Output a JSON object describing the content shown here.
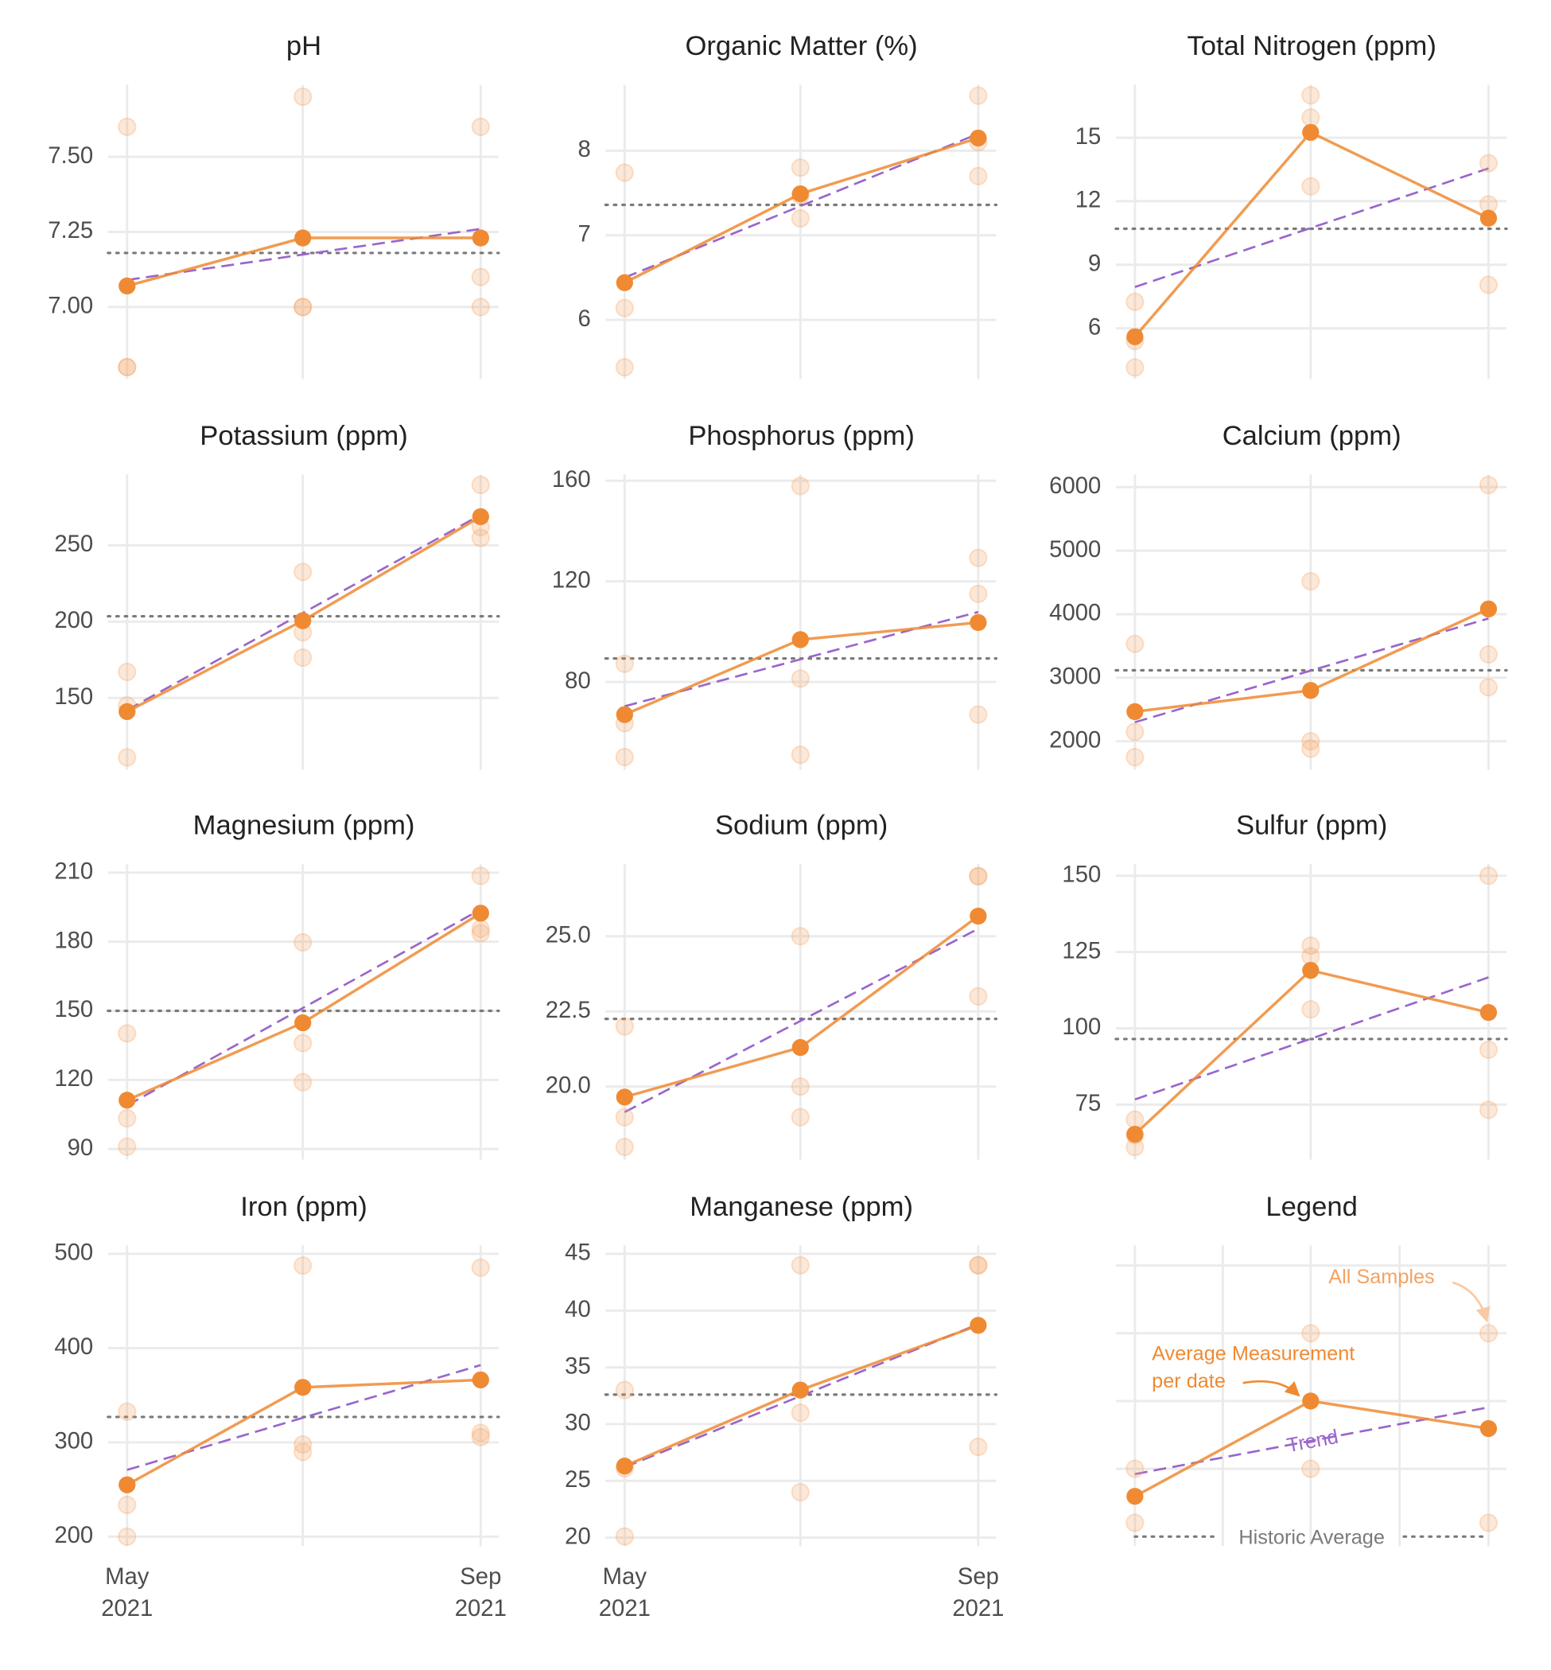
{
  "chart_data": [
    {
      "type": "line",
      "title": "pH",
      "categories": [
        null,
        null,
        null
      ],
      "samples": [
        [
          7.6,
          6.8,
          6.8
        ],
        [
          7.7,
          7.0,
          7.0
        ],
        [
          7.6,
          7.1,
          7.0
        ]
      ],
      "average": [
        7.07,
        7.23,
        7.23
      ],
      "trend": [
        7.09,
        7.26
      ],
      "historic_average": 7.18,
      "ylim": [
        6.76,
        7.74
      ],
      "yticks": [
        {
          "value": 7,
          "label": "7.00"
        },
        {
          "value": 7.25,
          "label": "7.25"
        },
        {
          "value": 7.5,
          "label": "7.50"
        }
      ]
    },
    {
      "type": "line",
      "title": "Organic Matter (%)",
      "categories": [
        null,
        null,
        null
      ],
      "samples": [
        [
          7.74,
          6.14,
          5.44
        ],
        [
          7.8,
          7.2,
          7.47
        ],
        [
          8.65,
          7.7,
          8.1
        ]
      ],
      "average": [
        6.44,
        7.49,
        8.15
      ],
      "trend": [
        6.5,
        8.2
      ],
      "historic_average": 7.36,
      "ylim": [
        5.3,
        8.78
      ],
      "yticks": [
        6,
        7,
        8
      ]
    },
    {
      "type": "line",
      "title": "Total Nitrogen (ppm)",
      "categories": [
        null,
        null,
        null
      ],
      "samples": [
        [
          7.25,
          5.4,
          4.15
        ],
        [
          17,
          15.95,
          12.7
        ],
        [
          13.8,
          11.85,
          8.05
        ]
      ],
      "average": [
        5.6,
        15.25,
        11.2
      ],
      "trend": [
        7.95,
        13.55
      ],
      "historic_average": 10.7,
      "ylim": [
        3.6,
        17.5
      ],
      "yticks": [
        6,
        9,
        12,
        15
      ]
    },
    {
      "type": "line",
      "title": "Potassium (ppm)",
      "categories": [
        null,
        null,
        null
      ],
      "samples": [
        [
          167,
          111,
          145
        ],
        [
          232.6,
          193,
          176.4
        ],
        [
          289.6,
          254.9,
          262
        ]
      ],
      "average": [
        141,
        200.6,
        268.8
      ],
      "trend": [
        142,
        270
      ],
      "historic_average": 203.5,
      "ylim": [
        102.8,
        296.5
      ],
      "yticks": [
        150,
        200,
        250
      ]
    },
    {
      "type": "line",
      "title": "Phosphorus (ppm)",
      "categories": [
        null,
        null,
        null
      ],
      "samples": [
        [
          87.2,
          63.6,
          50.1
        ],
        [
          157.9,
          81.3,
          51
        ],
        [
          129.3,
          115,
          67
        ]
      ],
      "average": [
        67,
        96.8,
        103.6
      ],
      "trend": [
        70.3,
        107.8
      ],
      "historic_average": 89.3,
      "ylim": [
        45,
        162.5
      ],
      "yticks": [
        80,
        120,
        160
      ]
    },
    {
      "type": "line",
      "title": "Calcium (ppm)",
      "categories": [
        null,
        null,
        null
      ],
      "samples": [
        [
          3533,
          2150,
          1750
        ],
        [
          4517,
          2000,
          1883
        ],
        [
          6033,
          3367,
          2850
        ]
      ],
      "average": [
        2467,
        2800,
        4083
      ],
      "trend": [
        2300,
        3933
      ],
      "historic_average": 3117,
      "ylim": [
        1550,
        6200
      ],
      "yticks": [
        2000,
        3000,
        4000,
        5000,
        6000
      ]
    },
    {
      "type": "line",
      "title": "Magnesium (ppm)",
      "categories": [
        null,
        null,
        null
      ],
      "samples": [
        [
          140.2,
          103.3,
          91
        ],
        [
          179.7,
          136,
          119
        ],
        [
          208.6,
          185.6,
          183.7
        ]
      ],
      "average": [
        111.2,
        144.8,
        192.4
      ],
      "trend": [
        108.9,
        194
      ],
      "historic_average": 150,
      "ylim": [
        85.4,
        213.7
      ],
      "yticks": [
        90,
        120,
        150,
        180,
        210
      ]
    },
    {
      "type": "line",
      "title": "Sodium (ppm)",
      "categories": [
        null,
        null,
        null
      ],
      "samples": [
        [
          22.0,
          18.98,
          17.99
        ],
        [
          25,
          20,
          18.98
        ],
        [
          27,
          27,
          23
        ]
      ],
      "average": [
        19.65,
        21.3,
        25.67
      ],
      "trend": [
        19.15,
        25.25
      ],
      "historic_average": 22.25,
      "ylim": [
        17.57,
        27.4
      ],
      "yticks": [
        {
          "value": 20,
          "label": "20.0"
        },
        {
          "value": 22.5,
          "label": "22.5"
        },
        {
          "value": 25,
          "label": "25.0"
        }
      ]
    },
    {
      "type": "line",
      "title": "Sulfur (ppm)",
      "categories": [
        null,
        null,
        null
      ],
      "samples": [
        [
          70.1,
          61.1,
          65
        ],
        [
          127.1,
          123.6,
          106.2
        ],
        [
          150,
          93,
          73.3
        ]
      ],
      "average": [
        65.3,
        119,
        105.2
      ],
      "trend": [
        76.7,
        116.7
      ],
      "historic_average": 96.5,
      "ylim": [
        57,
        153.8
      ],
      "yticks": [
        75,
        100,
        125,
        150
      ]
    },
    {
      "type": "line",
      "title": "Iron (ppm)",
      "categories": [
        "May 2021",
        null,
        "Sep 2021"
      ],
      "samples": [
        [
          332.6,
          233.7,
          200
        ],
        [
          487.6,
          297.8,
          289.9
        ],
        [
          485.4,
          310,
          305.6
        ]
      ],
      "average": [
        255,
        358.4,
        366.3
      ],
      "trend": [
        270.8,
        382
      ],
      "historic_average": 327,
      "ylim": [
        190,
        509
      ],
      "yticks": [
        200,
        300,
        400,
        500
      ]
    },
    {
      "type": "line",
      "title": "Manganese (ppm)",
      "categories": [
        "May 2021",
        null,
        "Sep 2021"
      ],
      "samples": [
        [
          33,
          26.1,
          20.1
        ],
        [
          44,
          31,
          24
        ],
        [
          44,
          44,
          28
        ]
      ],
      "average": [
        26.3,
        33,
        38.7
      ],
      "trend": [
        26.2,
        38.8
      ],
      "historic_average": 32.6,
      "ylim": [
        19.25,
        45.75
      ],
      "yticks": [
        20,
        25,
        30,
        35,
        40,
        45
      ]
    },
    {
      "type": "legend",
      "title": "Legend",
      "series": [
        {
          "name": "All Samples",
          "color": "#f4a262"
        },
        {
          "name": "Average Measurement per date",
          "color": "#ef8a33"
        },
        {
          "name": "Trend",
          "color": "#9966cc"
        },
        {
          "name": "Historic Average",
          "color": "#7a7a7a"
        }
      ]
    }
  ]
}
